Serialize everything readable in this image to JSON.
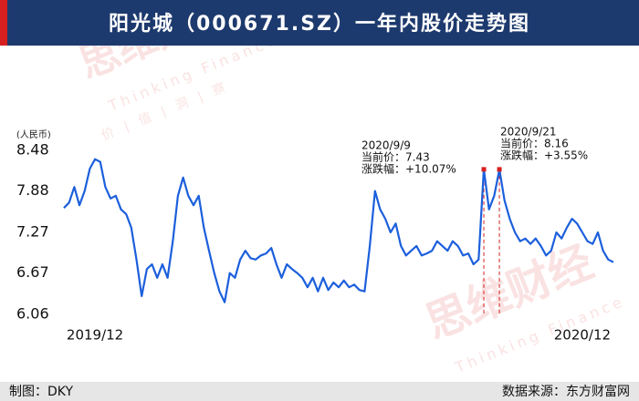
{
  "chart_data": {
    "type": "line",
    "title": "阳光城（000671.SZ）一年内股价走势图",
    "y_label": "(人民币)",
    "footer_left": "制图：DKY",
    "footer_right": "数据来源：东方财富网",
    "watermark": [
      "思维财经",
      "Thinking Finance",
      "价 | 值 | 洞 | 察"
    ],
    "color": "#1c5fdc",
    "grid": false,
    "ylim": [
      6.06,
      8.48
    ],
    "yticks": [
      6.06,
      6.67,
      7.27,
      7.88,
      8.48
    ],
    "categories": [
      null,
      null,
      null,
      null,
      null,
      null,
      "2019/12",
      null,
      null,
      null,
      null,
      null,
      null,
      null,
      null,
      null,
      null,
      null,
      null,
      null,
      null,
      null,
      null,
      null,
      null,
      null,
      null,
      null,
      null,
      null,
      null,
      null,
      null,
      null,
      null,
      null,
      null,
      null,
      null,
      null,
      null,
      null,
      null,
      null,
      null,
      null,
      null,
      null,
      null,
      null,
      null,
      null,
      null,
      null,
      null,
      null,
      null,
      null,
      null,
      null,
      null,
      null,
      null,
      null,
      null,
      null,
      null,
      null,
      null,
      null,
      null,
      null,
      null,
      null,
      null,
      null,
      null,
      null,
      null,
      null,
      null,
      null,
      null,
      null,
      null,
      null,
      null,
      null,
      null,
      null,
      null,
      null,
      null,
      null,
      null,
      null,
      null,
      null,
      null,
      null,
      "2020/12",
      null,
      null,
      null,
      null,
      null,
      null
    ],
    "values": [
      7.63,
      7.71,
      7.94,
      7.67,
      7.88,
      8.21,
      8.35,
      8.31,
      7.94,
      7.77,
      7.81,
      7.61,
      7.54,
      7.34,
      6.87,
      6.33,
      6.73,
      6.8,
      6.6,
      6.8,
      6.6,
      7.14,
      7.81,
      8.08,
      7.81,
      7.67,
      7.81,
      7.34,
      7.0,
      6.67,
      6.4,
      6.24,
      6.67,
      6.6,
      6.87,
      7.0,
      6.89,
      6.87,
      6.93,
      6.96,
      7.04,
      6.8,
      6.6,
      6.8,
      6.73,
      6.67,
      6.6,
      6.46,
      6.6,
      6.4,
      6.6,
      6.42,
      6.53,
      6.46,
      6.56,
      6.46,
      6.5,
      6.42,
      6.4,
      7.07,
      7.88,
      7.61,
      7.47,
      7.27,
      7.4,
      7.07,
      6.93,
      7.0,
      7.07,
      6.93,
      6.96,
      7.0,
      7.14,
      7.07,
      7.0,
      7.14,
      7.07,
      6.93,
      6.96,
      6.8,
      6.87,
      8.2,
      7.61,
      7.81,
      8.2,
      7.74,
      7.47,
      7.27,
      7.14,
      7.18,
      7.1,
      7.18,
      7.07,
      6.93,
      7.0,
      7.27,
      7.18,
      7.34,
      7.47,
      7.4,
      7.27,
      7.14,
      7.1,
      7.27,
      7.0,
      6.87,
      6.83
    ],
    "annotations": [
      {
        "date": "2020/9/9",
        "price": "当前价：7.43",
        "change": "涨跌幅：+10.07%"
      },
      {
        "date": "2020/9/21",
        "price": "当前价：8.16",
        "change": "涨跌幅：+3.55%"
      }
    ]
  }
}
